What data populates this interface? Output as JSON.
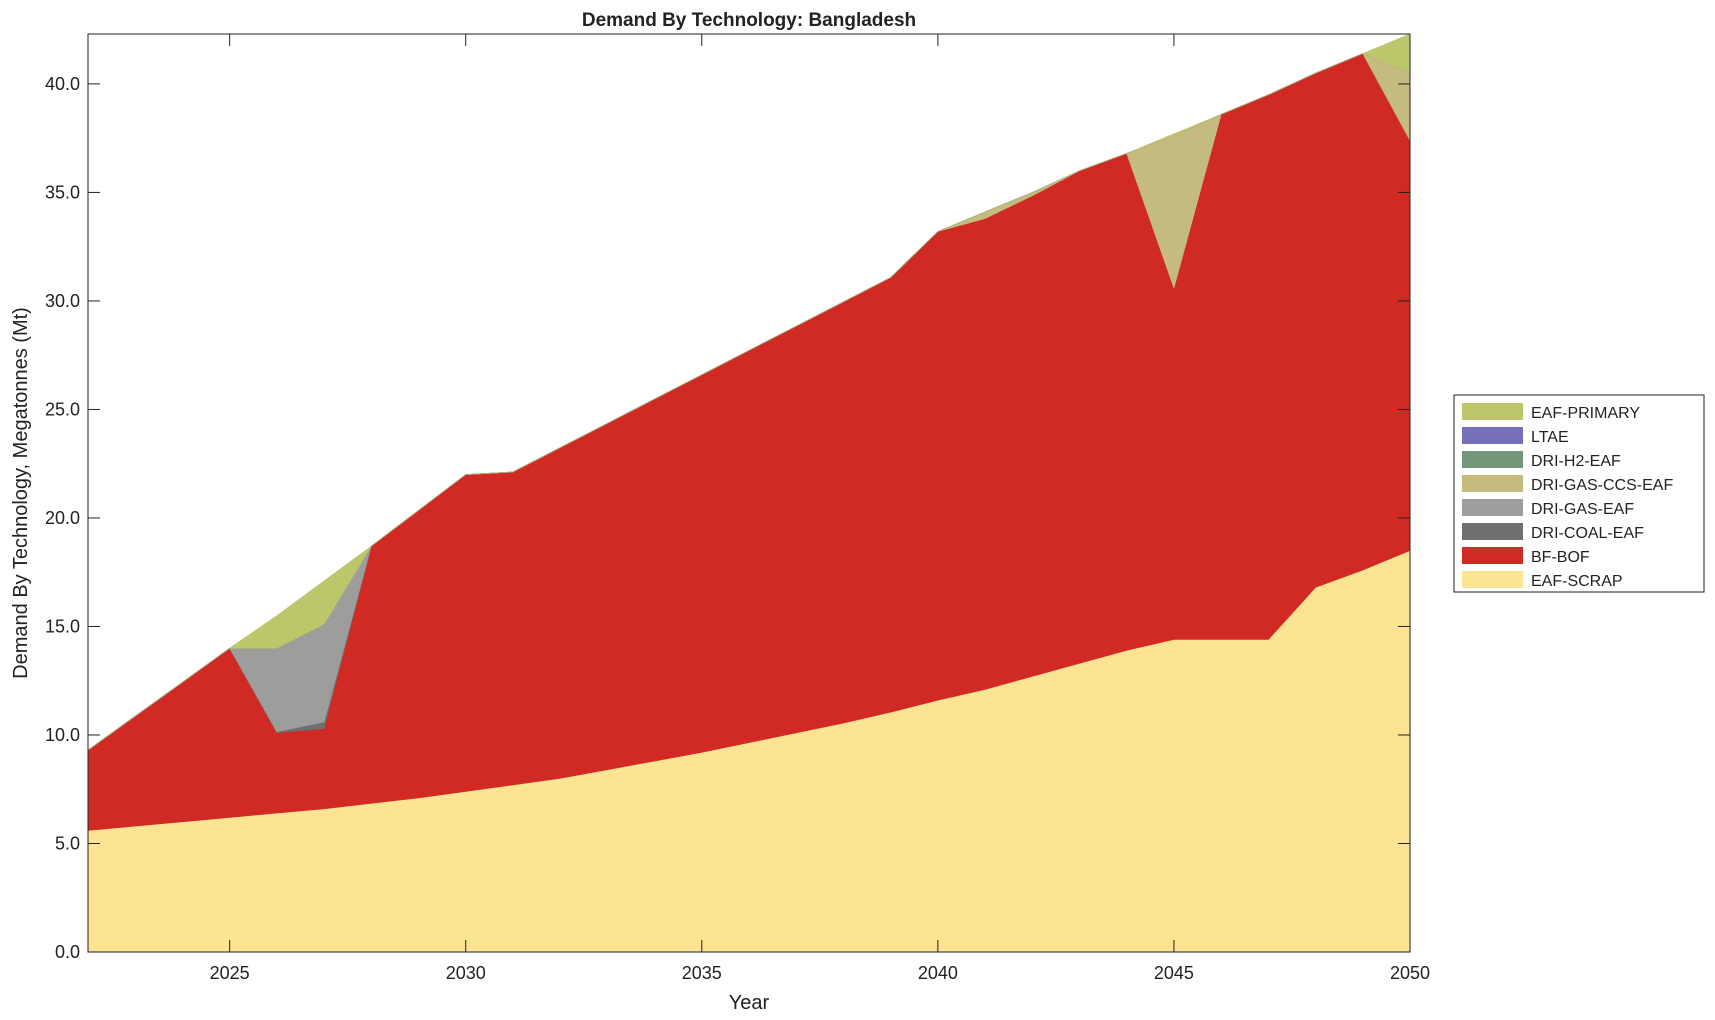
{
  "chart_data": {
    "type": "area",
    "stacked": true,
    "title": "Demand By Technology: Bangladesh",
    "xlabel": "Year",
    "ylabel": "Demand By Technology, Megatonnes (Mt)",
    "xlim": [
      2022,
      2050
    ],
    "ylim": [
      0,
      42.3
    ],
    "xticks": [
      2025,
      2030,
      2035,
      2040,
      2045,
      2050
    ],
    "yticks": [
      0,
      5,
      10,
      15,
      20,
      25,
      30,
      35,
      40
    ],
    "ytick_labels": [
      "0.0",
      "5.0",
      "10.0",
      "15.0",
      "20.0",
      "25.0",
      "30.0",
      "35.0",
      "40.0"
    ],
    "legend_position": "right",
    "x": [
      2022,
      2023,
      2024,
      2025,
      2026,
      2027,
      2028,
      2029,
      2030,
      2031,
      2032,
      2033,
      2034,
      2035,
      2036,
      2037,
      2038,
      2039,
      2040,
      2041,
      2042,
      2043,
      2044,
      2045,
      2046,
      2047,
      2048,
      2049,
      2050
    ],
    "series": [
      {
        "name": "EAF-SCRAP",
        "color": "#fde493",
        "values": [
          5.6,
          5.8,
          6.0,
          6.2,
          6.4,
          6.6,
          6.85,
          7.1,
          7.4,
          7.7,
          8.0,
          8.4,
          8.8,
          9.2,
          9.65,
          10.1,
          10.55,
          11.05,
          11.6,
          12.1,
          12.7,
          13.3,
          13.9,
          14.4,
          14.4,
          14.4,
          16.8,
          17.6,
          18.5
        ]
      },
      {
        "name": "BF-BOF",
        "color": "#d12a25",
        "values": [
          3.7,
          5.07,
          6.43,
          7.8,
          3.7,
          3.7,
          11.85,
          13.25,
          14.6,
          14.42,
          15.24,
          15.96,
          16.68,
          17.4,
          18.07,
          18.74,
          19.41,
          20.03,
          21.6,
          21.7,
          22.15,
          22.7,
          22.9,
          16.2,
          24.2,
          25.1,
          23.7,
          23.8,
          18.9
        ]
      },
      {
        "name": "DRI-COAL-EAF",
        "color": "#707070",
        "values": [
          0,
          0,
          0,
          0,
          0.05,
          0.3,
          0,
          0,
          0,
          0,
          0,
          0,
          0,
          0,
          0,
          0,
          0,
          0,
          0,
          0,
          0,
          0,
          0,
          0,
          0,
          0,
          0,
          0,
          0
        ]
      },
      {
        "name": "DRI-GAS-EAF",
        "color": "#9d9d9b",
        "values": [
          0,
          0,
          0,
          0,
          3.85,
          4.5,
          0,
          0,
          0,
          0,
          0,
          0,
          0,
          0,
          0,
          0,
          0,
          0,
          0,
          0,
          0,
          0,
          0,
          0,
          0,
          0,
          0,
          0,
          0
        ]
      },
      {
        "name": "DRI-GAS-CCS-EAF",
        "color": "#c5bb7e",
        "values": [
          0,
          0,
          0,
          0,
          0,
          0,
          0,
          0,
          0,
          0,
          0,
          0,
          0,
          0,
          0,
          0,
          0,
          0,
          0,
          0.3,
          0.15,
          0,
          0,
          7.0,
          0,
          0,
          0,
          0,
          3.1
        ]
      },
      {
        "name": "DRI-H2-EAF",
        "color": "#74967a",
        "values": [
          0,
          0,
          0,
          0,
          0,
          0,
          0,
          0,
          0,
          0,
          0,
          0,
          0,
          0,
          0,
          0,
          0,
          0,
          0,
          0,
          0,
          0,
          0,
          0,
          0,
          0,
          0,
          0,
          0
        ]
      },
      {
        "name": "LTAE",
        "color": "#7570b9",
        "values": [
          0,
          0,
          0,
          0,
          0,
          0,
          0,
          0,
          0,
          0,
          0,
          0,
          0,
          0,
          0,
          0,
          0,
          0,
          0,
          0,
          0,
          0,
          0,
          0,
          0,
          0,
          0,
          0,
          0
        ]
      },
      {
        "name": "EAF-PRIMARY",
        "color": "#bdc66b",
        "values": [
          0,
          0,
          0,
          0,
          1.5,
          2.0,
          0,
          0,
          0,
          0,
          0,
          0,
          0,
          0,
          0,
          0,
          0,
          0,
          0,
          0,
          0,
          0,
          0,
          0.1,
          0,
          0,
          0,
          0,
          1.8
        ]
      }
    ]
  }
}
